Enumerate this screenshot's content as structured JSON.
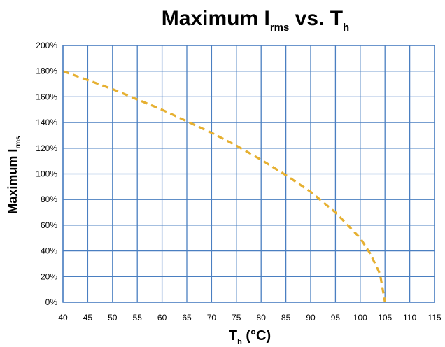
{
  "chart_data": {
    "type": "line",
    "title": {
      "main": "Maximum I",
      "main_sub": "rms",
      "mid": " vs. T",
      "mid_sub": "h"
    },
    "xlabel": {
      "main": "T",
      "sub": "h",
      "rest": " (°C)"
    },
    "ylabel": {
      "main": "Maximum I",
      "sub": "rms"
    },
    "xlim": [
      40,
      115
    ],
    "ylim": [
      0,
      200
    ],
    "x_ticks": [
      40,
      45,
      50,
      55,
      60,
      65,
      70,
      75,
      80,
      85,
      90,
      95,
      100,
      105,
      110,
      115
    ],
    "x_tick_labels": [
      "40",
      "45",
      "50",
      "55",
      "60",
      "65",
      "70",
      "75",
      "80",
      "85",
      "90",
      "95",
      "100",
      "105",
      "110",
      "115"
    ],
    "y_ticks": [
      0,
      20,
      40,
      60,
      80,
      100,
      120,
      140,
      160,
      180,
      200
    ],
    "y_tick_labels": [
      "0%",
      "20%",
      "40%",
      "60%",
      "80%",
      "100%",
      "120%",
      "140%",
      "160%",
      "180%",
      "200%"
    ],
    "grid": true,
    "series": [
      {
        "style": "dashed",
        "color": "#e6b031",
        "x": [
          40,
          45,
          50,
          55,
          60,
          65,
          70,
          75,
          80,
          85,
          90,
          95,
          100,
          102,
          104,
          105
        ],
        "y": [
          180,
          173,
          166,
          158,
          150,
          141,
          132,
          122,
          111,
          99,
          86,
          70,
          50,
          38,
          22,
          0
        ]
      }
    ],
    "colors": {
      "grid": "#4a7fc1",
      "frame": "#4a7fc1"
    }
  }
}
